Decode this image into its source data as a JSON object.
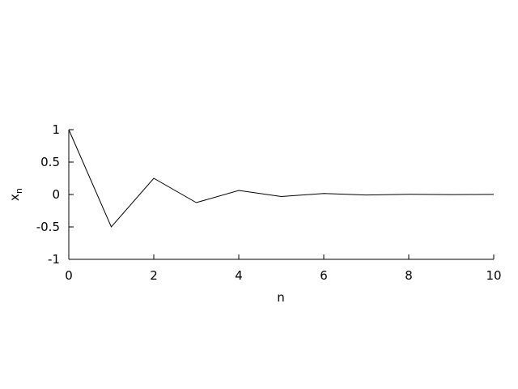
{
  "chart_data": {
    "type": "line",
    "title": "",
    "xlabel": "n",
    "ylabel": {
      "base": "x",
      "subscript": "n"
    },
    "xlim": [
      0,
      10
    ],
    "ylim": [
      -1,
      1
    ],
    "xticks": [
      0,
      2,
      4,
      6,
      8,
      10
    ],
    "xtick_labels": [
      "0",
      "2",
      "4",
      "6",
      "8",
      "10"
    ],
    "yticks": [
      -1,
      -0.5,
      0,
      0.5,
      1
    ],
    "ytick_labels": [
      "-1",
      "-0.5",
      "0",
      "0.5",
      "1"
    ],
    "grid": false,
    "line_color": "#000000",
    "series": [
      {
        "x": [
          0,
          1,
          2,
          3,
          4,
          5,
          6,
          7,
          8,
          9,
          10
        ],
        "values": [
          1,
          -0.5,
          0.25,
          -0.125,
          0.0625,
          -0.03125,
          0.015625,
          -0.0078125,
          0.00390625,
          -0.001953125,
          0.0009765625
        ]
      }
    ]
  }
}
